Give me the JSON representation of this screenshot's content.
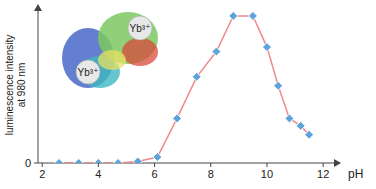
{
  "chart_data": {
    "type": "line",
    "xlabel": "pH",
    "ylabel": [
      "luminescence intensity",
      "at 980 nm"
    ],
    "annotations": [
      "Yb³⁺",
      "Yb³⁺"
    ],
    "series": [
      {
        "name": "luminescence",
        "color": "#f08a8a",
        "marker": "diamond",
        "x": [
          2.6,
          3.3,
          4.0,
          4.7,
          5.4,
          6.1,
          6.8,
          7.5,
          8.2,
          8.8,
          9.5,
          10.0,
          10.4,
          10.8,
          11.2,
          11.5
        ],
        "values": [
          0,
          0,
          0,
          0,
          0.01,
          0.04,
          0.3,
          0.58,
          0.75,
          0.99,
          0.99,
          0.78,
          0.52,
          0.3,
          0.25,
          0.19
        ]
      }
    ],
    "xlim": [
      1.85,
      12.6
    ],
    "xticks": [
      2,
      4,
      6,
      8,
      10,
      12
    ],
    "ylim": [
      0,
      1.05
    ],
    "yticks": [
      0
    ],
    "grid": false
  }
}
